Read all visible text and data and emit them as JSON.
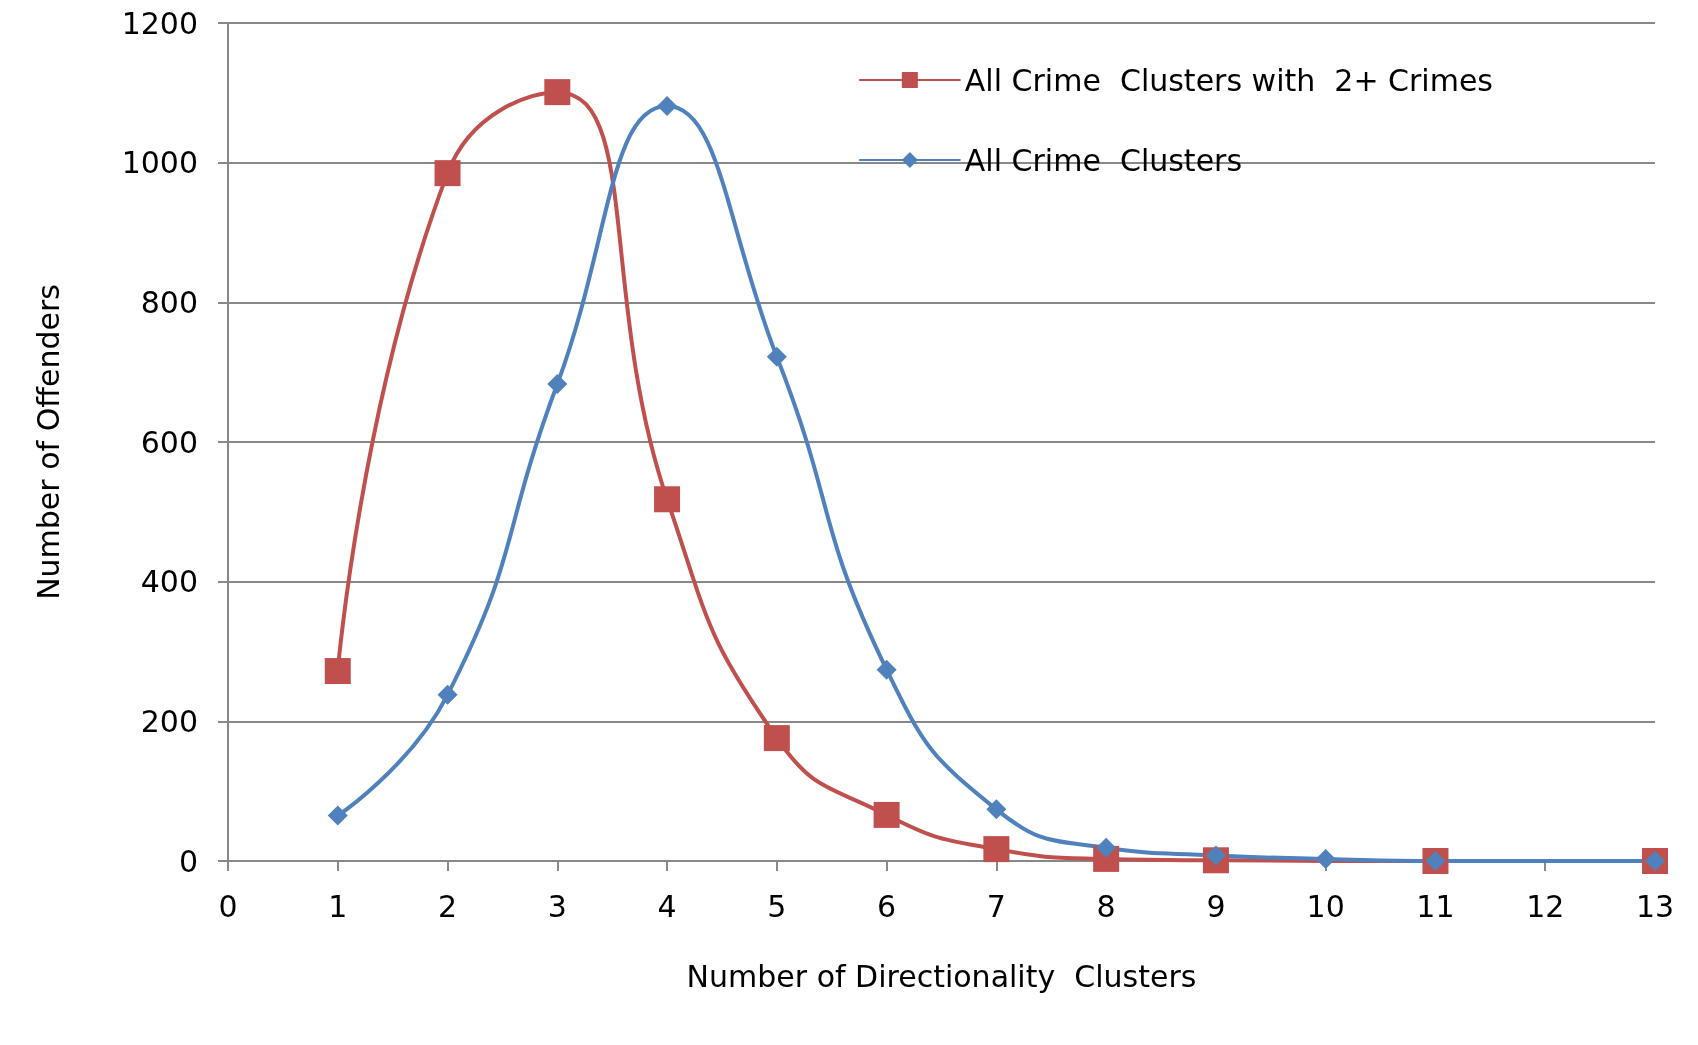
{
  "chart_data": {
    "type": "line",
    "xlabel": "Number of Directionality  Clusters",
    "ylabel": "Number of Offenders",
    "xlim": [
      0,
      13
    ],
    "xticks": [
      0,
      1,
      2,
      3,
      4,
      5,
      6,
      7,
      8,
      9,
      10,
      11,
      12,
      13
    ],
    "ylim": [
      0,
      1200
    ],
    "yticks": [
      0,
      200,
      400,
      600,
      800,
      1000,
      1200
    ],
    "grid": "y",
    "legend": "top right",
    "series": [
      {
        "name": "All Crime  Clusters with  2+ Crimes",
        "color": "#c0504d",
        "marker": "square",
        "x": [
          1,
          2,
          3,
          4,
          5,
          6,
          7,
          8,
          9,
          11,
          13
        ],
        "values": [
          272,
          985,
          1101,
          518,
          176,
          66,
          17,
          3,
          1,
          0,
          0
        ]
      },
      {
        "name": "All Crime  Clusters",
        "color": "#4f81bd",
        "marker": "diamond",
        "x": [
          1,
          2,
          3,
          4,
          5,
          6,
          7,
          8,
          9,
          10,
          11,
          13
        ],
        "values": [
          65,
          238,
          683,
          1081,
          722,
          274,
          74,
          19,
          8,
          3,
          0,
          0
        ]
      }
    ]
  }
}
